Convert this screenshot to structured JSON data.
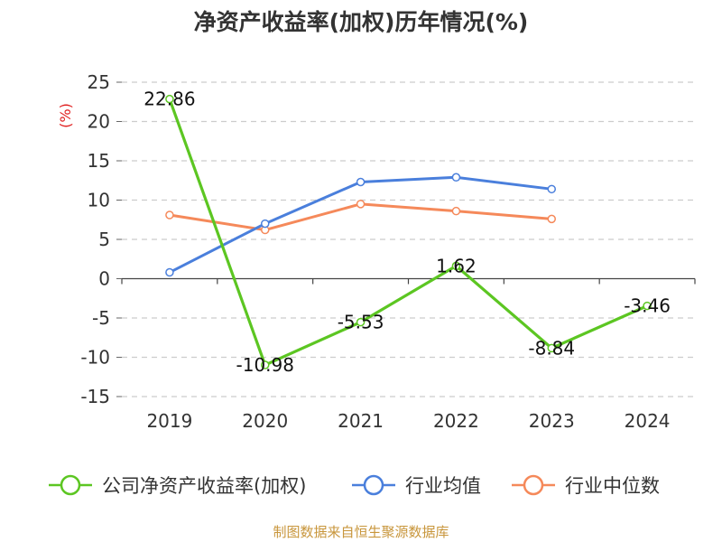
{
  "chart_data": {
    "type": "line",
    "title": "净资产收益率(加权)历年情况(%)",
    "ylabel": "(%)",
    "xlabel": "",
    "categories": [
      "2019",
      "2020",
      "2021",
      "2022",
      "2023",
      "2024"
    ],
    "ylim": [
      -15,
      25
    ],
    "yticks": [
      25,
      20,
      15,
      10,
      5,
      0,
      -5,
      -10,
      -15
    ],
    "grid": true,
    "legend_position": "bottom",
    "series": [
      {
        "name": "公司净资产收益率(加权)",
        "color": "#5cc622",
        "values": [
          22.86,
          -10.98,
          -5.53,
          1.62,
          -8.84,
          -3.46
        ],
        "labels": [
          "22.86",
          "-10.98",
          "-5.53",
          "1.62",
          "-8.84",
          "-3.46"
        ]
      },
      {
        "name": "行业均值",
        "color": "#4a7fdc",
        "values": [
          0.8,
          7.0,
          12.3,
          12.9,
          11.4,
          null
        ]
      },
      {
        "name": "行业中位数",
        "color": "#f5895a",
        "values": [
          8.1,
          6.2,
          9.5,
          8.6,
          7.6,
          null
        ]
      }
    ],
    "source": "制图数据来自恒生聚源数据库"
  }
}
